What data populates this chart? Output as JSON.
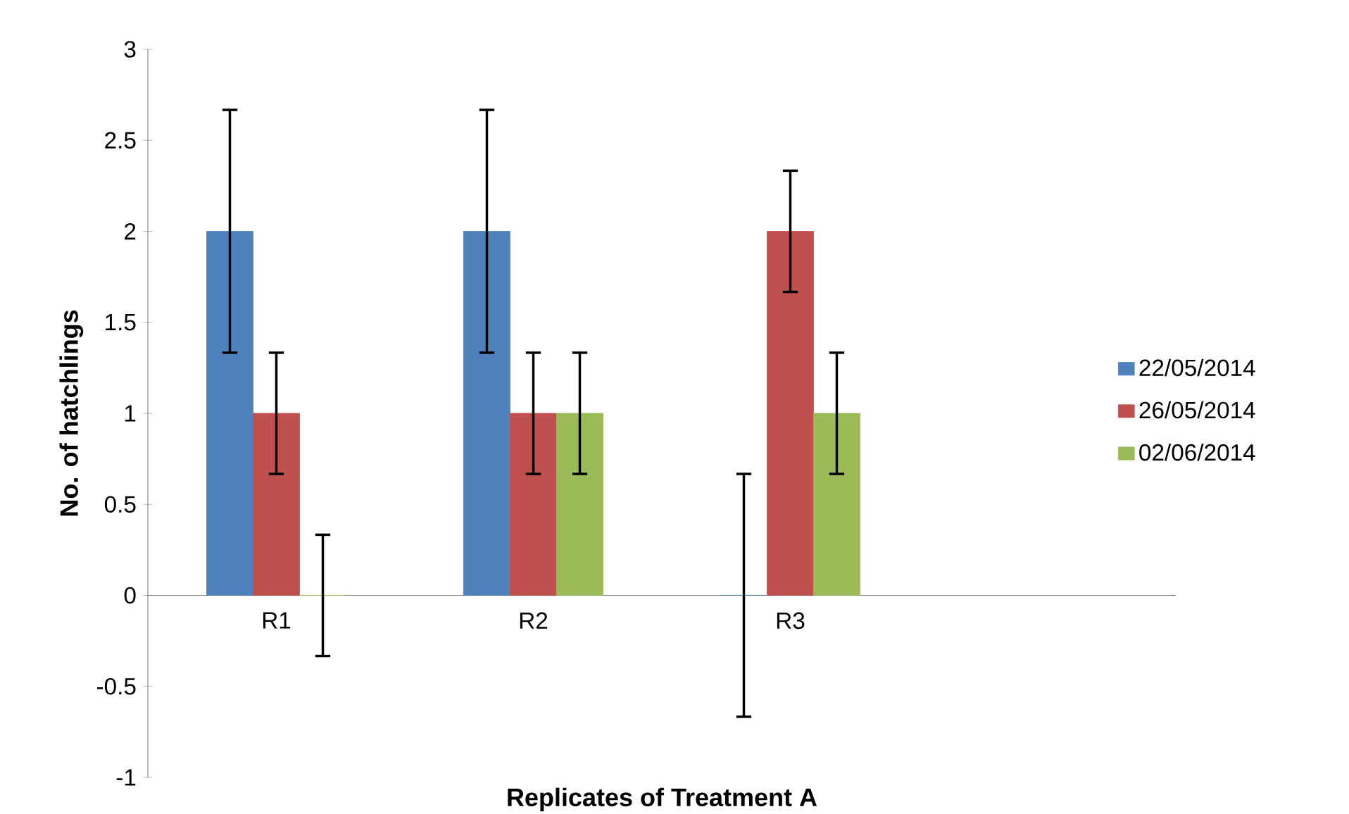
{
  "chart_data": {
    "type": "bar",
    "xlabel": "Replicates of Treatment A",
    "ylabel": "No. of hatchlings",
    "categories": [
      "R1",
      "R2",
      "R3",
      null
    ],
    "series": [
      {
        "name": "22/05/2014",
        "color": "#4f81bd",
        "values": [
          2,
          2,
          0,
          null
        ],
        "errors": [
          0.667,
          0.667,
          0.667,
          null
        ]
      },
      {
        "name": "26/05/2014",
        "color": "#c0504d",
        "values": [
          1,
          1,
          2,
          null
        ],
        "errors": [
          0.333,
          0.333,
          0.333,
          null
        ]
      },
      {
        "name": "02/06/2014",
        "color": "#9bbb59",
        "values": [
          0,
          1,
          1,
          null
        ],
        "errors": [
          0.333,
          0.333,
          0.333,
          null
        ]
      }
    ],
    "ylim": [
      -1,
      3
    ],
    "yticks": [
      -1,
      -0.5,
      0,
      0.5,
      1,
      1.5,
      2,
      2.5,
      3
    ],
    "legend": "right",
    "grid": false
  }
}
